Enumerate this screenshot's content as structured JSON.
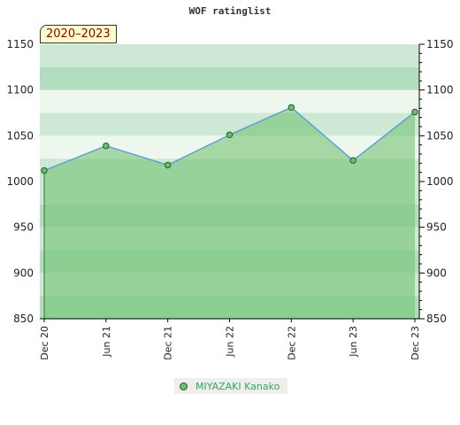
{
  "chart_data": {
    "type": "area",
    "title": "WOF ratinglist",
    "period_label": "2020–2023",
    "xlabel": "",
    "ylabel": "",
    "x": [
      "Dec 20",
      "Jun 21",
      "Dec 21",
      "Jun 22",
      "Dec 22",
      "Jun 23",
      "Dec 23"
    ],
    "ylim": [
      850,
      1150
    ],
    "y_ticks": [
      850,
      900,
      950,
      1000,
      1050,
      1100,
      1150
    ],
    "y_axis_sides": [
      "left",
      "right"
    ],
    "series": [
      {
        "name": "MIYAZAKI Kanako",
        "values": [
          1012,
          1039,
          1018,
          1051,
          1081,
          1023,
          1076
        ]
      }
    ],
    "legend_position": "bottom",
    "colors": {
      "line": "#5b9bd5",
      "marker_fill": "#6cbf6c",
      "marker_stroke": "#235b23",
      "area_fill": "#6cbf6c",
      "band_light": "#eef7ee",
      "band_mid": "#cde8d4",
      "band_dark": "#b3ddc0",
      "legend_text": "#34a853",
      "period_text": "#8b0000",
      "period_bg": "#ffffcc"
    }
  }
}
